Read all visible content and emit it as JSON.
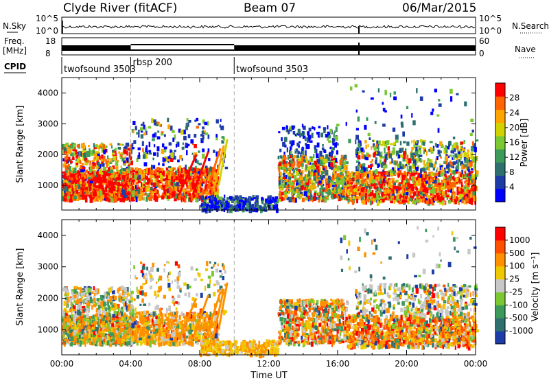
{
  "header": {
    "station": "Clyde River (fitACF)",
    "beam": "Beam 07",
    "date": "06/Mar/2015"
  },
  "strips": {
    "nsky_label": "N.Sky",
    "nsky_ticks": [
      "10^5",
      "10^0"
    ],
    "nsearch_label": "N.Search",
    "nsearch_ticks": [
      "10^5",
      "10^0"
    ],
    "freq_label_1": "Freq.",
    "freq_label_2": "[MHz]",
    "freq_ticks": [
      "18",
      "8"
    ],
    "nave_label": "Nave",
    "nave_ticks": [
      "60",
      "0"
    ],
    "cpid_label": "CPID",
    "cpid_segments": [
      {
        "name": "twofsound 3503",
        "start_h": 0,
        "end_h": 4
      },
      {
        "name": "rbsp 200",
        "start_h": 4,
        "end_h": 10
      },
      {
        "name": "twofsound 3503",
        "start_h": 10,
        "end_h": 24
      }
    ]
  },
  "chart_data": [
    {
      "type": "heatmap",
      "name": "Power",
      "xlabel": "Time UT",
      "ylabel": "Slant Range [km]",
      "x_ticks": [
        "00:00",
        "04:00",
        "08:00",
        "12:00",
        "16:00",
        "20:00",
        "00:00"
      ],
      "xlim_hours": [
        0,
        24
      ],
      "ylim": [
        200,
        4500
      ],
      "y_ticks": [
        1000,
        2000,
        3000,
        4000
      ],
      "colorbar": {
        "label": "Power [dB]",
        "range": [
          0,
          32
        ],
        "ticks": [
          4,
          8,
          12,
          16,
          20,
          24,
          28
        ],
        "colors": [
          "#0000ff",
          "#1e3ca8",
          "#2e7070",
          "#3c9a5a",
          "#7cc832",
          "#d2d200",
          "#ffa500",
          "#ff6400",
          "#ff0000"
        ]
      }
    },
    {
      "type": "heatmap",
      "name": "Velocity",
      "xlabel": "Time UT",
      "ylabel": "Slant Range [km]",
      "x_ticks": [
        "00:00",
        "04:00",
        "08:00",
        "12:00",
        "16:00",
        "20:00",
        "00:00"
      ],
      "xlim_hours": [
        0,
        24
      ],
      "ylim": [
        200,
        4500
      ],
      "y_ticks": [
        1000,
        2000,
        3000,
        4000
      ],
      "colorbar": {
        "label": "Velocity [m s⁻¹]",
        "ticks": [
          "1000",
          "500",
          "100",
          "25",
          "-25",
          "-100",
          "-500",
          "-1000"
        ],
        "colors": [
          "#1e3ca8",
          "#2e7070",
          "#3c9a5a",
          "#7cc832",
          "#c8c8c8",
          "#f0c800",
          "#ff9000",
          "#ff5000",
          "#ff0000"
        ]
      }
    }
  ]
}
